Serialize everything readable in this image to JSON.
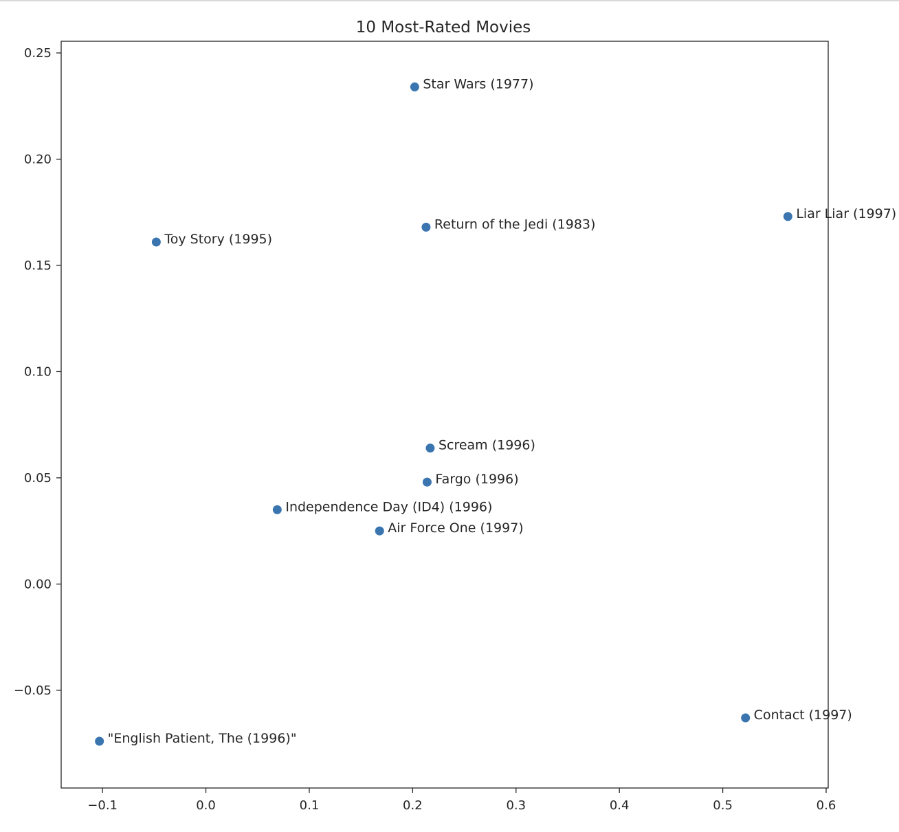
{
  "chart_data": {
    "type": "scatter",
    "title": "10 Most-Rated Movies",
    "xlabel": "",
    "ylabel": "",
    "xlim": [
      -0.14,
      0.602
    ],
    "ylim": [
      -0.096,
      0.2555
    ],
    "xticks": [
      -0.1,
      0.0,
      0.1,
      0.2,
      0.3,
      0.4,
      0.5,
      0.6
    ],
    "xtick_labels": [
      "−0.1",
      "0.0",
      "0.1",
      "0.2",
      "0.3",
      "0.4",
      "0.5",
      "0.6"
    ],
    "yticks": [
      -0.05,
      0.0,
      0.05,
      0.1,
      0.15,
      0.2,
      0.25
    ],
    "ytick_labels": [
      "−0.05",
      "0.00",
      "0.05",
      "0.10",
      "0.15",
      "0.20",
      "0.25"
    ],
    "grid": false,
    "marker_color": "#3a75b0",
    "points": [
      {
        "label": "Star Wars (1977)",
        "x": 0.202,
        "y": 0.234
      },
      {
        "label": "Liar Liar (1997)",
        "x": 0.563,
        "y": 0.173
      },
      {
        "label": "Return of the Jedi (1983)",
        "x": 0.213,
        "y": 0.168
      },
      {
        "label": "Toy Story (1995)",
        "x": -0.048,
        "y": 0.161
      },
      {
        "label": "Scream (1996)",
        "x": 0.217,
        "y": 0.064
      },
      {
        "label": "Fargo (1996)",
        "x": 0.214,
        "y": 0.048
      },
      {
        "label": "Independence Day (ID4) (1996)",
        "x": 0.069,
        "y": 0.035
      },
      {
        "label": "Air Force One (1997)",
        "x": 0.168,
        "y": 0.025
      },
      {
        "label": "Contact (1997)",
        "x": 0.522,
        "y": -0.063
      },
      {
        "label": "\"English Patient, The (1996)\"",
        "x": -0.103,
        "y": -0.074
      }
    ]
  }
}
